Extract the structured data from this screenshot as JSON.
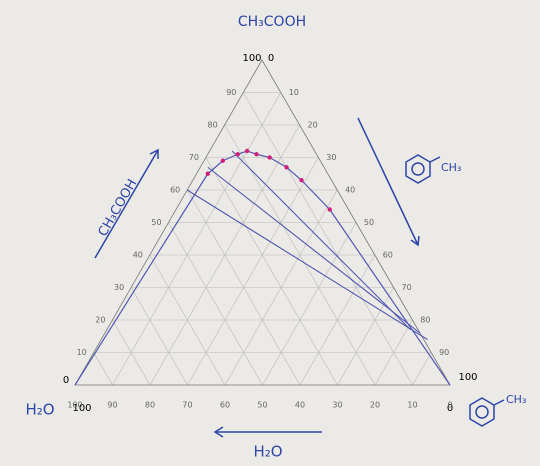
{
  "chart_data": {
    "type": "ternary",
    "top_label": "CH₃COOH",
    "left_label": "H₂O",
    "side_label": "CH₃COOH",
    "bottom_label": "H₂O",
    "toluene_label": "CH₃",
    "corner_labels": {
      "top": [
        "100",
        "0"
      ],
      "left": [
        "0",
        "100"
      ],
      "right": [
        "0",
        "100"
      ]
    },
    "a_ticks": [
      10,
      20,
      30,
      40,
      50,
      60,
      70,
      80,
      90
    ],
    "t_ticks": [
      10,
      20,
      30,
      40,
      50,
      60,
      70,
      80,
      90
    ],
    "w_ticks": [
      100,
      90,
      80,
      70,
      60,
      50,
      40,
      30,
      20,
      10,
      0
    ],
    "grid": true,
    "grid_color": "#b9b9b9",
    "line_color": "#5058b0",
    "point_color": "#d0207a",
    "binodal": {
      "acetic": [
        65,
        69,
        71,
        72,
        71,
        70,
        67,
        63,
        54
      ],
      "toluene": [
        3,
        5,
        8,
        10,
        13,
        17,
        23,
        29,
        41
      ]
    },
    "tie_lines": [
      {
        "acetic": [
          60,
          14
        ],
        "toluene": [
          0,
          87
        ]
      },
      {
        "acetic": [
          67,
          16
        ],
        "toluene": [
          2,
          84
        ]
      },
      {
        "acetic": [
          72,
          17
        ],
        "toluene": [
          6,
          81
        ]
      }
    ]
  }
}
